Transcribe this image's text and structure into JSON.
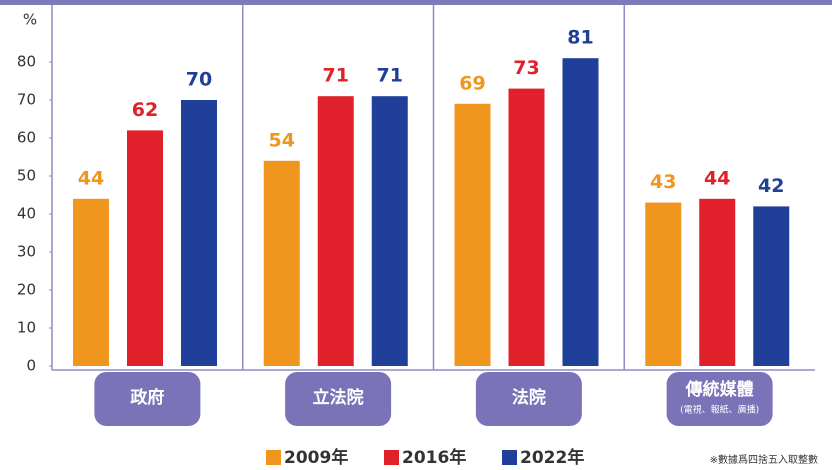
{
  "chart_data": {
    "type": "bar",
    "y_label": "%",
    "categories": [
      "政府",
      "立法院",
      "法院",
      "傳統媒體"
    ],
    "category_sublabels": [
      null,
      null,
      null,
      "(電視、報紙、廣播)"
    ],
    "series": [
      {
        "name": "2009年",
        "color": "#f0961e",
        "values": [
          44,
          54,
          69,
          43
        ]
      },
      {
        "name": "2016年",
        "color": "#e0202a",
        "values": [
          62,
          71,
          73,
          44
        ]
      },
      {
        "name": "2022年",
        "color": "#1f3f99",
        "values": [
          70,
          71,
          81,
          42
        ]
      }
    ],
    "ylim": [
      0,
      95
    ],
    "yticks": [
      0,
      10,
      20,
      30,
      40,
      50,
      60,
      70,
      80
    ],
    "note": "※數據爲四捨五入取整數"
  }
}
